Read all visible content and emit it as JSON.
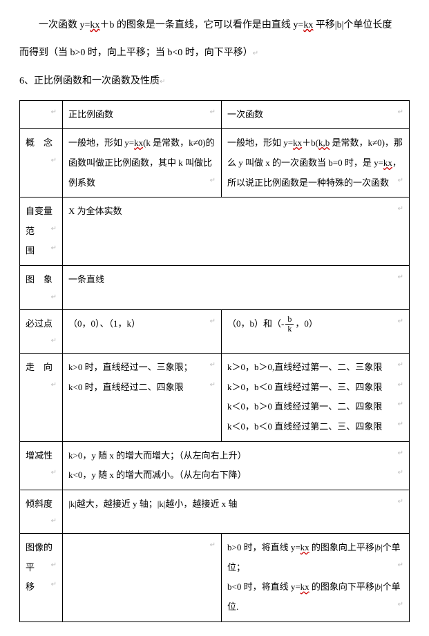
{
  "intro_line1_a": "一次函数 y=",
  "intro_line1_kx": "kx",
  "intro_line1_b": "＋b 的图象是一条直线，它可以看作是由直线 y=",
  "intro_line1_kx2": "kx",
  "intro_line1_c": " 平移|b|个单位长度",
  "intro_line2": "而得到（当 b>0 时，向上平移；当 b<0 时，向下平移）",
  "section_title": "6、正比例函数和一次函数及性质",
  "hdr_col1": "正比例函数",
  "hdr_col2": "一次函数",
  "row_concept_label": "概　念",
  "row_concept_c1_a": "一般地，形如 y=",
  "row_concept_c1_kx": "kx",
  "row_concept_c1_b": "(k 是常数，k≠0)的函数叫做正比例函数，其中 k 叫做比例系数",
  "row_concept_c2_a": "一般地，形如 y=",
  "row_concept_c2_kx": "kx",
  "row_concept_c2_b": "＋b(",
  "row_concept_c2_kb": "k,b",
  "row_concept_c2_c": " 是常数，k≠0)，那么 y 叫做 x 的一次函数当 b=0 时，是 y=",
  "row_concept_c2_kx2": "kx",
  "row_concept_c2_d": "，所以说正比例函数是一种特殊的一次函数",
  "row_domain_label1": "自变量",
  "row_domain_label2": "范　围",
  "row_domain_val": "X 为全体实数",
  "row_graph_label": "图　象",
  "row_graph_val": "一条直线",
  "row_point_label": "必过点",
  "row_point_c1": "（0，0）、（1，k）",
  "row_point_c2_a": "（0，b）和（-",
  "row_point_c2_num": "b",
  "row_point_c2_den": "k",
  "row_point_c2_b": "，0）",
  "row_dir_label": "走　向",
  "row_dir_c1_l1": "k>0 时，直线经过一、三象限；",
  "row_dir_c1_l2": "k<0 时，直线经过二、四象限",
  "row_dir_c2_l1": "k＞0，b＞0,直线经过第一、二、三象限",
  "row_dir_c2_l2": "k＞0，b＜0 直线经过第一、三、四象限",
  "row_dir_c2_l3": "k＜0，b＞0 直线经过第一、二、四象限",
  "row_dir_c2_l4": "k＜0，b＜0 直线经过第二、三、四象限",
  "row_mono_label": "增减性",
  "row_mono_l1": "k>0，y 随 x 的增大而增大；（从左向右上升）",
  "row_mono_l2": "k<0，y 随 x 的增大而减小。（从左向右下降）",
  "row_slope_label": "倾斜度",
  "row_slope_val": "|k|越大，越接近 y 轴；|k|越小，越接近 x 轴",
  "row_shift_label1": "图像的",
  "row_shift_label2": "平　移",
  "row_shift_c2_l1_a": "b>0 时，将直线 y=",
  "row_shift_c2_l1_kx": "kx",
  "row_shift_c2_l1_b": " 的图象向上平移",
  "row_shift_c2_l1_absb": "b",
  "row_shift_c2_l1_c": "个单位；",
  "row_shift_c2_l2_a": "b<0 时，将直线 y=",
  "row_shift_c2_l2_kx": "kx",
  "row_shift_c2_l2_b": " 的图象向下平移",
  "row_shift_c2_l2_absb": "b",
  "row_shift_c2_l2_c": "个单位.",
  "end_mark": "↵"
}
